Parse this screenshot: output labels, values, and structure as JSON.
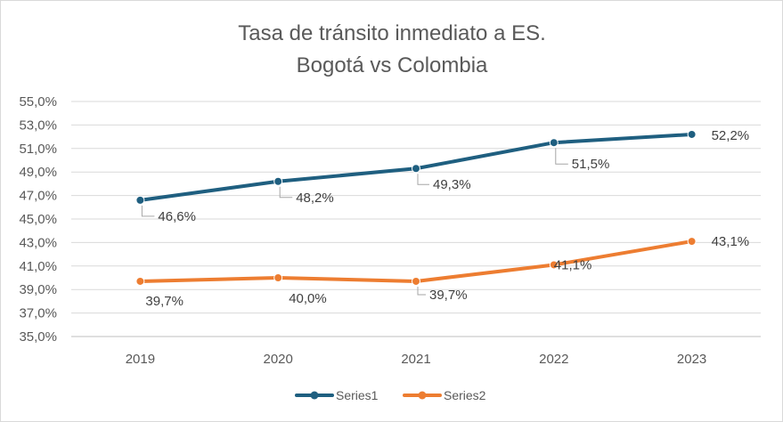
{
  "chart_data": {
    "type": "line",
    "title": [
      "Tasa de tránsito inmediato a ES.",
      "Bogotá vs Colombia"
    ],
    "categories": [
      "2019",
      "2020",
      "2021",
      "2022",
      "2023"
    ],
    "series": [
      {
        "name": "Series1",
        "color": "#1f5f80",
        "values": [
          46.6,
          48.2,
          49.3,
          51.5,
          52.2
        ],
        "labels": [
          "46,6%",
          "48,2%",
          "49,3%",
          "51,5%",
          "52,2%"
        ]
      },
      {
        "name": "Series2",
        "color": "#ed7d31",
        "values": [
          39.7,
          40.0,
          39.7,
          41.1,
          43.1
        ],
        "labels": [
          "39,7%",
          "40,0%",
          "39,7%",
          "41,1%",
          "43,1%"
        ]
      }
    ],
    "ylim": [
      35,
      55
    ],
    "yticks": [
      35,
      37,
      39,
      41,
      43,
      45,
      47,
      49,
      51,
      53,
      55
    ],
    "ytick_labels": [
      "35,0%",
      "37,0%",
      "39,0%",
      "41,0%",
      "43,0%",
      "45,0%",
      "47,0%",
      "49,0%",
      "51,0%",
      "53,0%",
      "55,0%"
    ],
    "grid": true,
    "legend": "bottom",
    "xlabel": "",
    "ylabel": ""
  }
}
